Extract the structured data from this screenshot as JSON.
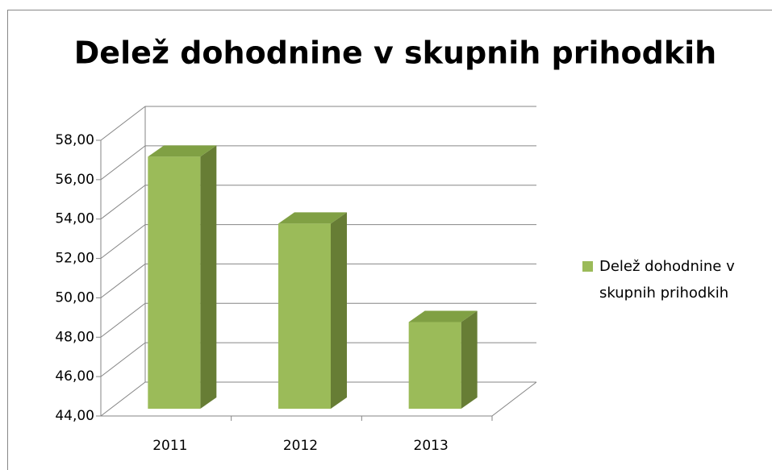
{
  "chart_data": {
    "type": "bar3d",
    "title": "Delež dohodnine v skupnih prihodkih",
    "categories": [
      "2011",
      "2012",
      "2013"
    ],
    "series": [
      {
        "name": "Delež dohodnine v skupnih prihodkih",
        "color": "#9bbb59",
        "values": [
          56.8,
          53.4,
          48.4
        ]
      }
    ],
    "ylim": [
      44,
      58
    ],
    "yticks": [
      {
        "value": 44,
        "label": "44,00"
      },
      {
        "value": 46,
        "label": "46,00"
      },
      {
        "value": 48,
        "label": "48,00"
      },
      {
        "value": 50,
        "label": "50,00"
      },
      {
        "value": 52,
        "label": "52,00"
      },
      {
        "value": 54,
        "label": "54,00"
      },
      {
        "value": 56,
        "label": "56,00"
      },
      {
        "value": 58,
        "label": "58,00"
      }
    ],
    "grid": true,
    "legend": "right"
  }
}
